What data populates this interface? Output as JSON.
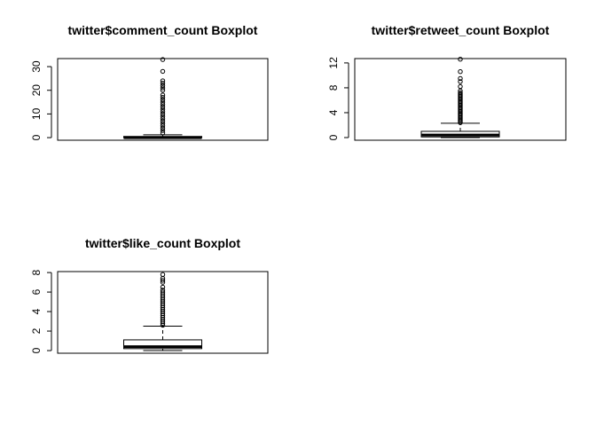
{
  "chart_data": [
    {
      "type": "boxplot",
      "title": "twitter$comment_count Boxplot",
      "ylim": [
        -1.1,
        33.4
      ],
      "yticks": [
        0,
        10,
        20,
        30
      ],
      "box": {
        "min": 0,
        "q1": 0,
        "median": 0,
        "q3": 0.5,
        "max": 1.2
      },
      "outliers": [
        2,
        3,
        4,
        5,
        6,
        7,
        8,
        9,
        10,
        11,
        12,
        13,
        14,
        15,
        16,
        17,
        18,
        20,
        21,
        22,
        23,
        24,
        28,
        33
      ]
    },
    {
      "type": "boxplot",
      "title": "twitter$retweet_count Boxplot",
      "ylim": [
        -0.43,
        12.7
      ],
      "yticks": [
        0,
        4,
        8,
        12
      ],
      "box": {
        "min": 0,
        "q1": 0.1,
        "median": 0.4,
        "q3": 1.0,
        "max": 2.3
      },
      "outliers": [
        2.4,
        2.6,
        2.8,
        3.0,
        3.2,
        3.4,
        3.6,
        3.8,
        4.0,
        4.2,
        4.4,
        4.6,
        4.8,
        5.0,
        5.2,
        5.4,
        5.6,
        5.8,
        6.0,
        6.2,
        6.4,
        6.6,
        6.8,
        7.0,
        7.2,
        7.5,
        8.2,
        9.0,
        9.5,
        10.6,
        12.6
      ]
    },
    {
      "type": "boxplot",
      "title": "twitter$like_count Boxplot",
      "ylim": [
        -0.27,
        8.1
      ],
      "yticks": [
        0,
        2,
        4,
        6,
        8
      ],
      "box": {
        "min": 0,
        "q1": 0.2,
        "median": 0.4,
        "q3": 1.1,
        "max": 2.5
      },
      "outliers": [
        2.6,
        2.8,
        3.0,
        3.2,
        3.4,
        3.6,
        3.8,
        4.0,
        4.2,
        4.4,
        4.6,
        4.8,
        5.0,
        5.2,
        5.4,
        5.6,
        5.8,
        6.0,
        6.2,
        6.5,
        7.0,
        7.2,
        7.4,
        7.8
      ]
    }
  ]
}
